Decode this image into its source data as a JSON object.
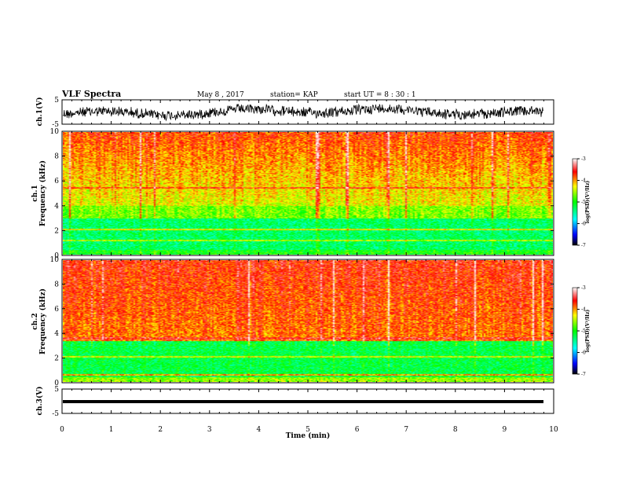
{
  "header": {
    "title": "VLF Spectra",
    "date": "May 8  , 2017",
    "station": "station= KAP",
    "start": "start  UT =   8  : 30 : 1"
  },
  "chart_data": [
    {
      "type": "line",
      "panel": "ch1-waveform",
      "ylabel": "ch.1(V)",
      "ylim": [
        -5,
        5
      ],
      "y_ticks": [
        "5",
        "-5"
      ],
      "xlim": [
        0,
        10
      ]
    },
    {
      "type": "heatmap",
      "panel": "ch1-spectrogram",
      "ylabel_top": "ch.1",
      "ylabel": "Frequency  (kHz)",
      "ylim": [
        0,
        10
      ],
      "y_ticks": [
        "0",
        "2",
        "4",
        "6",
        "8",
        "10"
      ],
      "xlim": [
        0,
        10
      ],
      "colorbar": {
        "label": "log(PSD)(V²/Hz)",
        "range": [
          -7,
          -3
        ],
        "ticks": [
          "-3",
          "-4",
          "-5",
          "-6",
          "-7"
        ]
      }
    },
    {
      "type": "heatmap",
      "panel": "ch2-spectrogram",
      "ylabel_top": "ch.2",
      "ylabel": "Frequency  (kHz)",
      "ylim": [
        0,
        10
      ],
      "y_ticks": [
        "0",
        "2",
        "4",
        "6",
        "8",
        "10"
      ],
      "xlim": [
        0,
        10
      ],
      "colorbar": {
        "label": "log(PSD)(V²/Hz)",
        "range": [
          -7,
          -3
        ],
        "ticks": [
          "-3",
          "-4",
          "-5",
          "-6",
          "-7"
        ]
      }
    },
    {
      "type": "line",
      "panel": "ch3-waveform",
      "ylabel": "ch.3(V)",
      "ylim": [
        -5,
        5
      ],
      "y_ticks": [
        "5",
        "-5"
      ],
      "xlim": [
        0,
        10
      ],
      "x_ticks": [
        "0",
        "1",
        "2",
        "3",
        "4",
        "5",
        "6",
        "7",
        "8",
        "9",
        "10"
      ],
      "xlabel": "Time  (min)"
    }
  ]
}
